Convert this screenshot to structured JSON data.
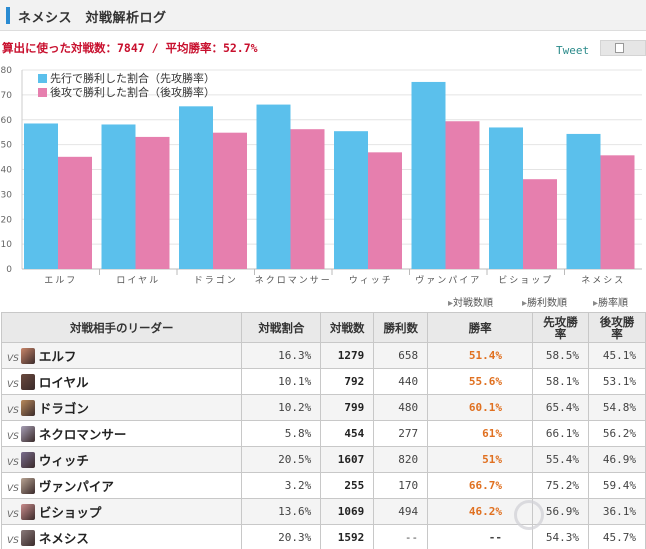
{
  "header": {
    "title": "ネメシス　対戦解析ログ"
  },
  "summary": {
    "text": "算出に使った対戦数：7847 / 平均勝率：52.7%"
  },
  "tweet_label": "Tweet",
  "colors": {
    "first": "#5bc0ec",
    "second": "#e67fae",
    "win_rate": "#e07020",
    "accent": "#2a8bd2"
  },
  "chart_data": {
    "type": "bar",
    "categories": [
      "エルフ",
      "ロイヤル",
      "ドラゴン",
      "ネクロマンサー",
      "ウィッチ",
      "ヴァンパイア",
      "ビショップ",
      "ネメシス"
    ],
    "series": [
      {
        "name": "先行で勝利した割合（先攻勝率）",
        "values": [
          58.5,
          58.1,
          65.4,
          66.1,
          55.4,
          75.2,
          56.9,
          54.3
        ]
      },
      {
        "name": "後攻で勝利した割合（後攻勝率）",
        "values": [
          45.1,
          53.1,
          54.8,
          56.2,
          46.9,
          59.4,
          36.1,
          45.7
        ]
      }
    ],
    "ylim": [
      0,
      80
    ],
    "yticks": [
      0,
      10,
      20,
      30,
      40,
      50,
      60,
      70,
      80
    ],
    "legend": "top-left",
    "grid": true
  },
  "sort_links": [
    "対戦数順",
    "勝利数順",
    "勝率順"
  ],
  "table": {
    "headers": {
      "leader": "対戦相手のリーダー",
      "ratio": "対戦割合",
      "battles": "対戦数",
      "wins": "勝利数",
      "winrate": "勝率",
      "first1": "先攻勝",
      "first2": "率",
      "second1": "後攻勝",
      "second2": "率"
    },
    "vs": "VS",
    "rows": [
      {
        "leader": "エルフ",
        "ratio": "16.3%",
        "battles": "1279",
        "wins": "658",
        "winrate": "51.4%",
        "first": "58.5%",
        "second": "45.1%",
        "avatar": "#c9866a"
      },
      {
        "leader": "ロイヤル",
        "ratio": "10.1%",
        "battles": "792",
        "wins": "440",
        "winrate": "55.6%",
        "first": "58.1%",
        "second": "53.1%",
        "avatar": "#6b4a3e"
      },
      {
        "leader": "ドラゴン",
        "ratio": "10.2%",
        "battles": "799",
        "wins": "480",
        "winrate": "60.1%",
        "first": "65.4%",
        "second": "54.8%",
        "avatar": "#b98a5b"
      },
      {
        "leader": "ネクロマンサー",
        "ratio": "5.8%",
        "battles": "454",
        "wins": "277",
        "winrate": "61%",
        "first": "66.1%",
        "second": "56.2%",
        "avatar": "#a7a0b6"
      },
      {
        "leader": "ウィッチ",
        "ratio": "20.5%",
        "battles": "1607",
        "wins": "820",
        "winrate": "51%",
        "first": "55.4%",
        "second": "46.9%",
        "avatar": "#7a6e8e"
      },
      {
        "leader": "ヴァンパイア",
        "ratio": "3.2%",
        "battles": "255",
        "wins": "170",
        "winrate": "66.7%",
        "first": "75.2%",
        "second": "59.4%",
        "avatar": "#b9a594"
      },
      {
        "leader": "ビショップ",
        "ratio": "13.6%",
        "battles": "1069",
        "wins": "494",
        "winrate": "46.2%",
        "first": "56.9%",
        "second": "36.1%",
        "avatar": "#c98c8c"
      },
      {
        "leader": "ネメシス",
        "ratio": "20.3%",
        "battles": "1592",
        "wins": "--",
        "winrate": "--",
        "first": "54.3%",
        "second": "45.7%",
        "avatar": "#8a7a7a"
      }
    ]
  }
}
